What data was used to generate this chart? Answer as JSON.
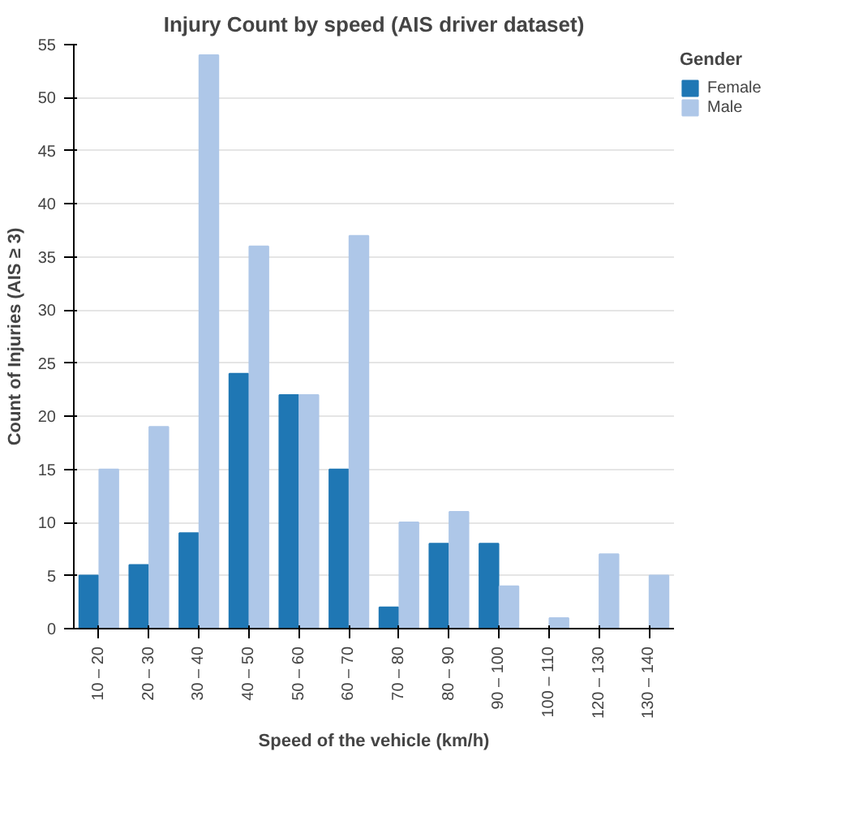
{
  "chart_data": {
    "type": "bar",
    "title": "Injury Count by speed (AIS driver dataset)",
    "xlabel": "Speed of the vehicle (km/h)",
    "ylabel": "Count of Injuries (AIS ≥ 3)",
    "legend_title": "Gender",
    "categories": [
      "10 – 20",
      "20 – 30",
      "30 – 40",
      "40 – 50",
      "50 – 60",
      "60 – 70",
      "70 – 80",
      "80 – 90",
      "90 – 100",
      "100 – 110",
      "120 – 130",
      "130 – 140"
    ],
    "series": [
      {
        "name": "Female",
        "color": "#1f77b4",
        "values": [
          5,
          6,
          9,
          24,
          22,
          15,
          2,
          8,
          8,
          null,
          null,
          null
        ]
      },
      {
        "name": "Male",
        "color": "#aec7e8",
        "values": [
          15,
          19,
          54,
          36,
          22,
          37,
          10,
          11,
          4,
          1,
          7,
          5
        ]
      }
    ],
    "ylim": [
      0,
      55
    ],
    "yticks": [
      0,
      5,
      10,
      15,
      20,
      25,
      30,
      35,
      40,
      45,
      50,
      55
    ],
    "grid": "y",
    "legend": "top right"
  }
}
